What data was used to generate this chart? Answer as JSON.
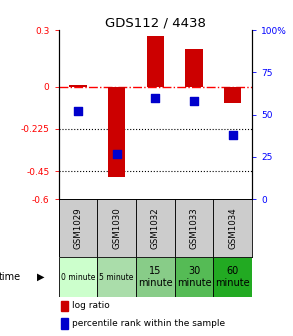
{
  "title": "GDS112 / 4438",
  "samples": [
    "GSM1029",
    "GSM1030",
    "GSM1032",
    "GSM1033",
    "GSM1034"
  ],
  "time_labels": [
    "0 minute",
    "5 minute",
    "15\nminute",
    "30\nminute",
    "60\nminute"
  ],
  "time_colors": [
    "#ccffcc",
    "#aaddaa",
    "#88cc88",
    "#55bb55",
    "#22aa22"
  ],
  "log_ratios": [
    0.01,
    -0.48,
    0.27,
    0.2,
    -0.09
  ],
  "percentile_ranks": [
    52,
    27,
    60,
    58,
    38
  ],
  "ylim_left": [
    -0.6,
    0.3
  ],
  "ylim_right": [
    0,
    100
  ],
  "yticks_left": [
    0.3,
    0.0,
    -0.225,
    -0.45,
    -0.6
  ],
  "ytick_labels_left": [
    "0.3",
    "0",
    "-0.225",
    "-0.45",
    "-0.6"
  ],
  "yticks_right": [
    100,
    75,
    50,
    25,
    0
  ],
  "ytick_labels_right": [
    "100%",
    "75",
    "50",
    "25",
    "0"
  ],
  "bar_color": "#cc0000",
  "dot_color": "#0000cc",
  "bar_width": 0.45,
  "dot_size": 40,
  "sample_bg": "#cccccc",
  "legend_red": "#cc0000",
  "legend_blue": "#0000cc"
}
